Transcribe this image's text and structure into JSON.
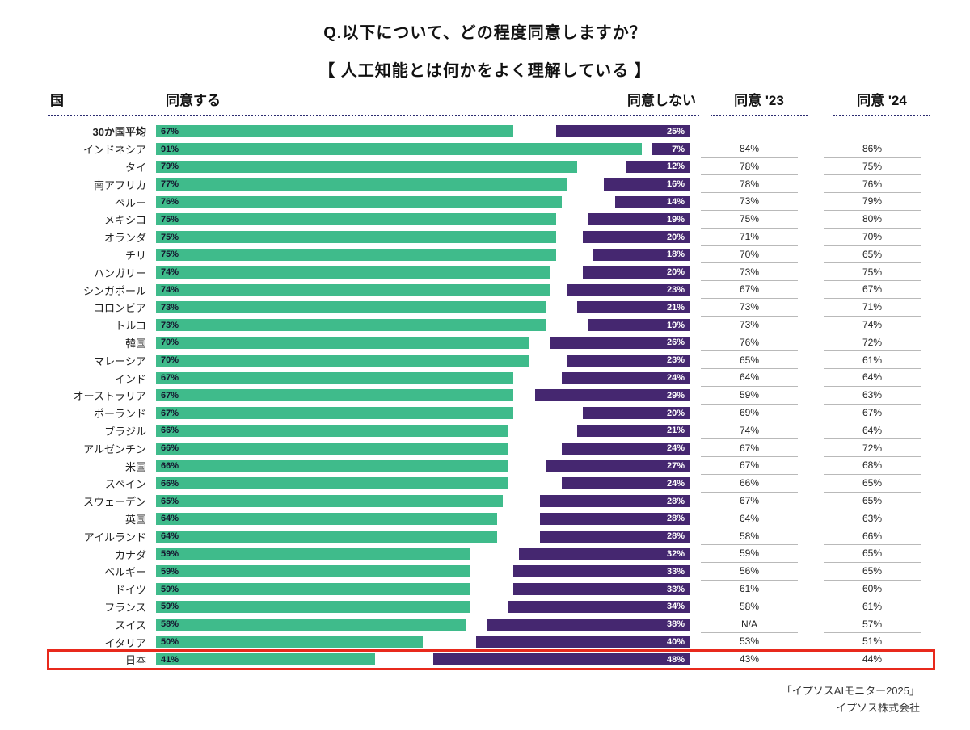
{
  "title": {
    "line1": "Q.以下について、どの程度同意しますか？",
    "line2": "【 人工知能とは何かをよく理解している 】"
  },
  "header": {
    "country": "国",
    "agree": "同意する",
    "disagree": "同意しない",
    "agree23": "同意 '23",
    "agree24": "同意 '24"
  },
  "footer": {
    "line1": "「イプソスAIモニター2025」",
    "line2": "イプソス株式会社"
  },
  "colors": {
    "agree_bar": "#3fbb8b",
    "disagree_bar": "#452770",
    "highlight_box": "#e8291c",
    "dotted_rule": "#2b2b70",
    "cell_rule": "#b9b9b9"
  },
  "chart_data": {
    "type": "bar",
    "orientation": "diverging-horizontal",
    "title": "Q.以下について、どの程度同意しますか？【 人工知能とは何かをよく理解している 】",
    "series": [
      {
        "name": "同意する",
        "color": "#3fbb8b"
      },
      {
        "name": "同意しない",
        "color": "#452770"
      }
    ],
    "extra_columns": [
      "同意 '23",
      "同意 '24"
    ],
    "axis_max_percent": 100,
    "rows": [
      {
        "country": "30か国平均",
        "agree": 67,
        "disagree": 25,
        "y23": "",
        "y24": "",
        "bold": true,
        "highlight": false
      },
      {
        "country": "インドネシア",
        "agree": 91,
        "disagree": 7,
        "y23": "84%",
        "y24": "86%",
        "bold": false,
        "highlight": false
      },
      {
        "country": "タイ",
        "agree": 79,
        "disagree": 12,
        "y23": "78%",
        "y24": "75%",
        "bold": false,
        "highlight": false
      },
      {
        "country": "南アフリカ",
        "agree": 77,
        "disagree": 16,
        "y23": "78%",
        "y24": "76%",
        "bold": false,
        "highlight": false
      },
      {
        "country": "ペルー",
        "agree": 76,
        "disagree": 14,
        "y23": "73%",
        "y24": "79%",
        "bold": false,
        "highlight": false
      },
      {
        "country": "メキシコ",
        "agree": 75,
        "disagree": 19,
        "y23": "75%",
        "y24": "80%",
        "bold": false,
        "highlight": false
      },
      {
        "country": "オランダ",
        "agree": 75,
        "disagree": 20,
        "y23": "71%",
        "y24": "70%",
        "bold": false,
        "highlight": false
      },
      {
        "country": "チリ",
        "agree": 75,
        "disagree": 18,
        "y23": "70%",
        "y24": "65%",
        "bold": false,
        "highlight": false
      },
      {
        "country": "ハンガリー",
        "agree": 74,
        "disagree": 20,
        "y23": "73%",
        "y24": "75%",
        "bold": false,
        "highlight": false
      },
      {
        "country": "シンガポール",
        "agree": 74,
        "disagree": 23,
        "y23": "67%",
        "y24": "67%",
        "bold": false,
        "highlight": false
      },
      {
        "country": "コロンビア",
        "agree": 73,
        "disagree": 21,
        "y23": "73%",
        "y24": "71%",
        "bold": false,
        "highlight": false
      },
      {
        "country": "トルコ",
        "agree": 73,
        "disagree": 19,
        "y23": "73%",
        "y24": "74%",
        "bold": false,
        "highlight": false
      },
      {
        "country": "韓国",
        "agree": 70,
        "disagree": 26,
        "y23": "76%",
        "y24": "72%",
        "bold": false,
        "highlight": false
      },
      {
        "country": "マレーシア",
        "agree": 70,
        "disagree": 23,
        "y23": "65%",
        "y24": "61%",
        "bold": false,
        "highlight": false
      },
      {
        "country": "インド",
        "agree": 67,
        "disagree": 24,
        "y23": "64%",
        "y24": "64%",
        "bold": false,
        "highlight": false
      },
      {
        "country": "オーストラリア",
        "agree": 67,
        "disagree": 29,
        "y23": "59%",
        "y24": "63%",
        "bold": false,
        "highlight": false
      },
      {
        "country": "ポーランド",
        "agree": 67,
        "disagree": 20,
        "y23": "69%",
        "y24": "67%",
        "bold": false,
        "highlight": false
      },
      {
        "country": "ブラジル",
        "agree": 66,
        "disagree": 21,
        "y23": "74%",
        "y24": "64%",
        "bold": false,
        "highlight": false
      },
      {
        "country": "アルゼンチン",
        "agree": 66,
        "disagree": 24,
        "y23": "67%",
        "y24": "72%",
        "bold": false,
        "highlight": false
      },
      {
        "country": "米国",
        "agree": 66,
        "disagree": 27,
        "y23": "67%",
        "y24": "68%",
        "bold": false,
        "highlight": false
      },
      {
        "country": "スペイン",
        "agree": 66,
        "disagree": 24,
        "y23": "66%",
        "y24": "65%",
        "bold": false,
        "highlight": false
      },
      {
        "country": "スウェーデン",
        "agree": 65,
        "disagree": 28,
        "y23": "67%",
        "y24": "65%",
        "bold": false,
        "highlight": false
      },
      {
        "country": "英国",
        "agree": 64,
        "disagree": 28,
        "y23": "64%",
        "y24": "63%",
        "bold": false,
        "highlight": false
      },
      {
        "country": "アイルランド",
        "agree": 64,
        "disagree": 28,
        "y23": "58%",
        "y24": "66%",
        "bold": false,
        "highlight": false
      },
      {
        "country": "カナダ",
        "agree": 59,
        "disagree": 32,
        "y23": "59%",
        "y24": "65%",
        "bold": false,
        "highlight": false
      },
      {
        "country": "ベルギー",
        "agree": 59,
        "disagree": 33,
        "y23": "56%",
        "y24": "65%",
        "bold": false,
        "highlight": false
      },
      {
        "country": "ドイツ",
        "agree": 59,
        "disagree": 33,
        "y23": "61%",
        "y24": "60%",
        "bold": false,
        "highlight": false
      },
      {
        "country": "フランス",
        "agree": 59,
        "disagree": 34,
        "y23": "58%",
        "y24": "61%",
        "bold": false,
        "highlight": false
      },
      {
        "country": "スイス",
        "agree": 58,
        "disagree": 38,
        "y23": "N/A",
        "y24": "57%",
        "bold": false,
        "highlight": false
      },
      {
        "country": "イタリア",
        "agree": 50,
        "disagree": 40,
        "y23": "53%",
        "y24": "51%",
        "bold": false,
        "highlight": false
      },
      {
        "country": "日本",
        "agree": 41,
        "disagree": 48,
        "y23": "43%",
        "y24": "44%",
        "bold": false,
        "highlight": true
      }
    ]
  }
}
